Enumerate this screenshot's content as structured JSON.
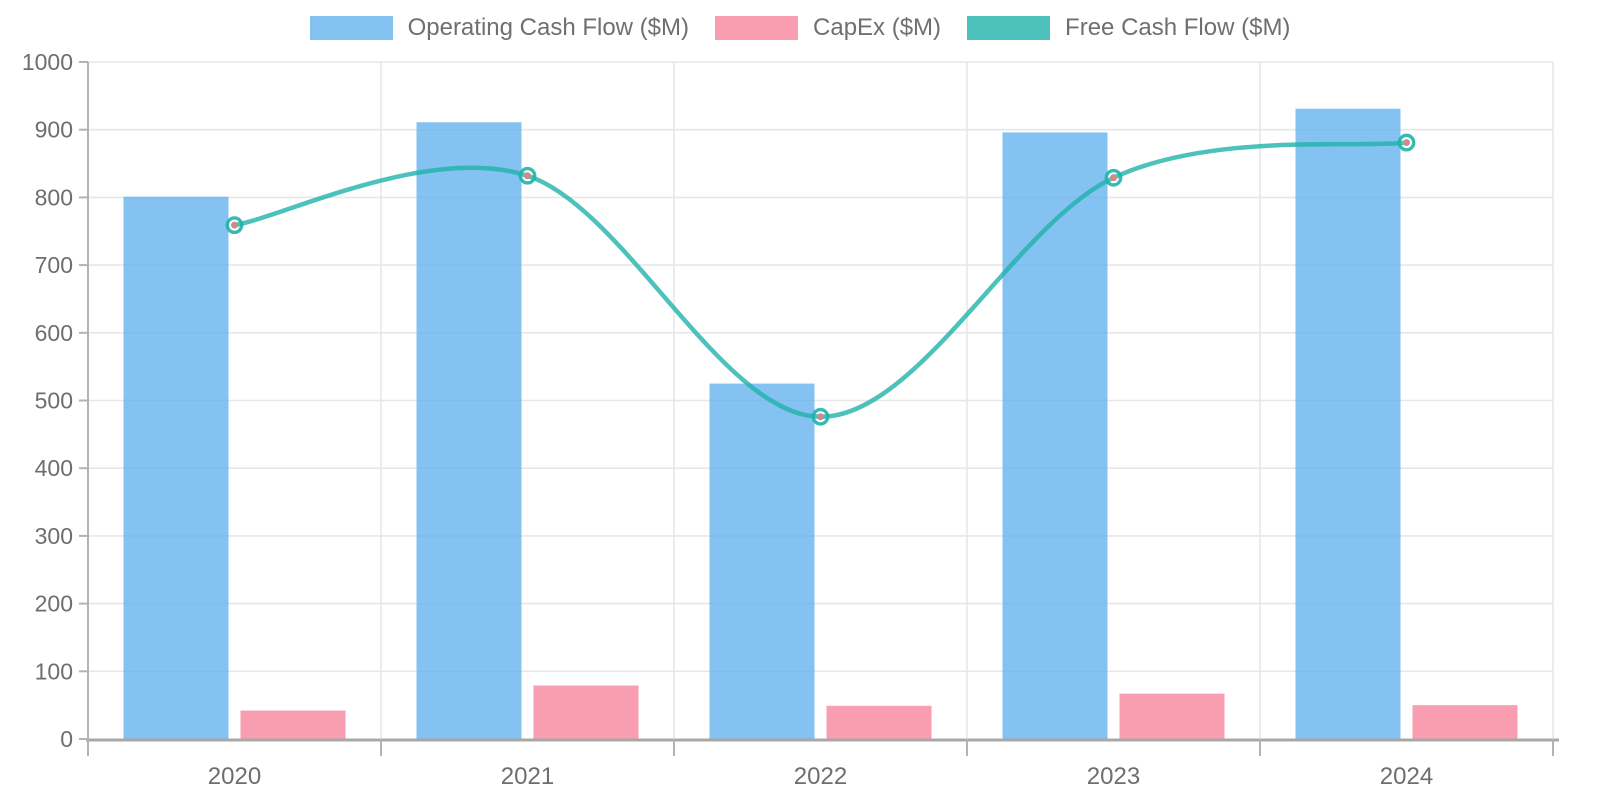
{
  "legend": {
    "position": "top",
    "items": [
      {
        "label": "Operating Cash Flow ($M)"
      },
      {
        "label": "CapEx ($M)"
      },
      {
        "label": "Free Cash Flow ($M)"
      }
    ]
  },
  "axes": {
    "y_tick_labels": [
      "0",
      "100",
      "200",
      "300",
      "400",
      "500",
      "600",
      "700",
      "800",
      "900",
      "1000"
    ],
    "x_labels": [
      "2020",
      "2021",
      "2022",
      "2023",
      "2024"
    ]
  },
  "colors": {
    "operating_bar": "rgba(101,179,238,0.8)",
    "capex_bar": "rgba(248,133,158,0.8)",
    "fcf_line": "rgba(32,178,170,0.8)",
    "fcf_marker_ring": "rgba(32,178,170,0.9)",
    "fcf_marker_center": "#cb8d8a",
    "grid": "#e7e7e7",
    "axis": "#a8a8a8",
    "tick_text": "#6e6e6e"
  },
  "chart_data": {
    "type": "bar",
    "subtype": "combo-bar-line",
    "categories": [
      "2020",
      "2021",
      "2022",
      "2023",
      "2024"
    ],
    "series": [
      {
        "name": "Operating Cash Flow ($M)",
        "type": "bar",
        "color": "rgba(101,179,238,0.8)",
        "values": [
          801,
          911,
          525,
          896,
          931
        ]
      },
      {
        "name": "CapEx ($M)",
        "type": "bar",
        "color": "rgba(248,133,158,0.8)",
        "values": [
          42,
          79,
          49,
          67,
          50
        ]
      },
      {
        "name": "Free Cash Flow ($M)",
        "type": "line",
        "color": "rgba(32,178,170,0.8)",
        "marker_ring_color": "rgba(32,178,170,0.9)",
        "marker_center_color": "#cb8d8a",
        "values": [
          759,
          832,
          476,
          829,
          881
        ]
      }
    ],
    "title": "",
    "xlabel": "",
    "ylabel": "",
    "ylim": [
      0,
      1000
    ],
    "ytick_step": 100,
    "grid": true,
    "legend_position": "top"
  }
}
